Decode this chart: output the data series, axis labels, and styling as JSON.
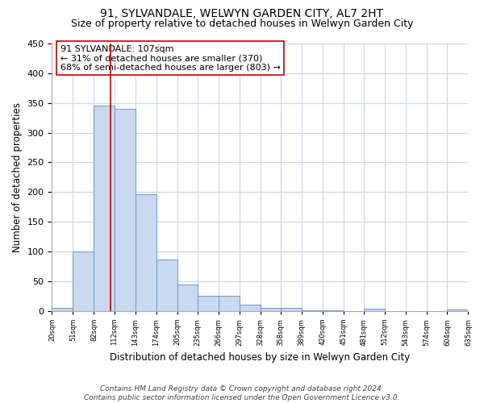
{
  "title": "91, SYLVANDALE, WELWYN GARDEN CITY, AL7 2HT",
  "subtitle": "Size of property relative to detached houses in Welwyn Garden City",
  "xlabel": "Distribution of detached houses by size in Welwyn Garden City",
  "ylabel": "Number of detached properties",
  "bar_edges": [
    20,
    51,
    82,
    112,
    143,
    174,
    205,
    235,
    266,
    297,
    328,
    358,
    389,
    420,
    451,
    481,
    512,
    543,
    574,
    604,
    635
  ],
  "bar_heights": [
    5,
    100,
    345,
    340,
    197,
    86,
    44,
    26,
    25,
    11,
    5,
    5,
    1,
    1,
    0,
    4,
    0,
    0,
    0,
    2
  ],
  "bar_color": "#c9d9f0",
  "bar_edge_color": "#6699cc",
  "property_line_x": 107,
  "property_line_color": "#cc0000",
  "annotation_text_line1": "91 SYLVANDALE: 107sqm",
  "annotation_text_line2": "← 31% of detached houses are smaller (370)",
  "annotation_text_line3": "68% of semi-detached houses are larger (803) →",
  "ylim": [
    0,
    450
  ],
  "tick_labels": [
    "20sqm",
    "51sqm",
    "82sqm",
    "112sqm",
    "143sqm",
    "174sqm",
    "205sqm",
    "235sqm",
    "266sqm",
    "297sqm",
    "328sqm",
    "358sqm",
    "389sqm",
    "420sqm",
    "451sqm",
    "481sqm",
    "512sqm",
    "543sqm",
    "574sqm",
    "604sqm",
    "635sqm"
  ],
  "footnote": "Contains HM Land Registry data © Crown copyright and database right 2024.\nContains public sector information licensed under the Open Government Licence v3.0.",
  "background_color": "#ffffff",
  "grid_color": "#c8d8e8",
  "title_fontsize": 10,
  "subtitle_fontsize": 9,
  "xlabel_fontsize": 8.5,
  "ylabel_fontsize": 8.5,
  "annotation_fontsize": 8,
  "footnote_fontsize": 6.5
}
